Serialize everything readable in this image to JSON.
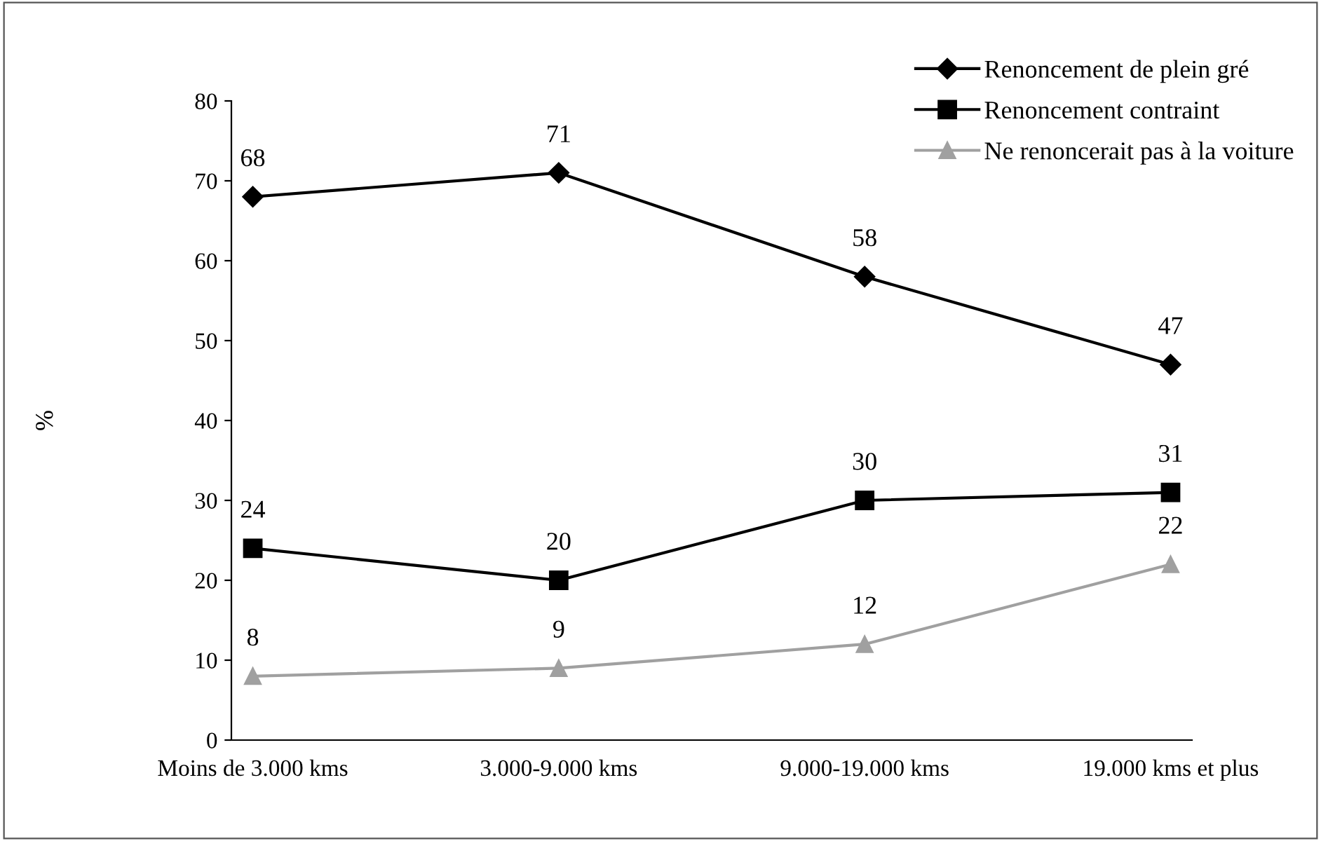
{
  "chart_data": {
    "type": "line",
    "ylabel": "%",
    "categories": [
      "Moins de 3.000 kms",
      "3.000-9.000 kms",
      "9.000-19.000 kms",
      "19.000 kms et plus"
    ],
    "series": [
      {
        "name": "Renoncement de plein gré",
        "color": "#000000",
        "marker": "diamond",
        "values": [
          68,
          71,
          58,
          47
        ]
      },
      {
        "name": "Renoncement contraint",
        "color": "#000000",
        "marker": "square",
        "values": [
          24,
          20,
          30,
          31
        ]
      },
      {
        "name": "Ne renoncerait pas à la voiture",
        "color": "#a0a0a0",
        "marker": "triangle",
        "values": [
          8,
          9,
          12,
          22
        ]
      }
    ],
    "ylim": [
      0,
      80
    ],
    "yticks": [
      0,
      10,
      20,
      30,
      40,
      50,
      60,
      70,
      80
    ],
    "data_labels": true,
    "legend": "top right",
    "grid": false,
    "line_style": "solid"
  }
}
